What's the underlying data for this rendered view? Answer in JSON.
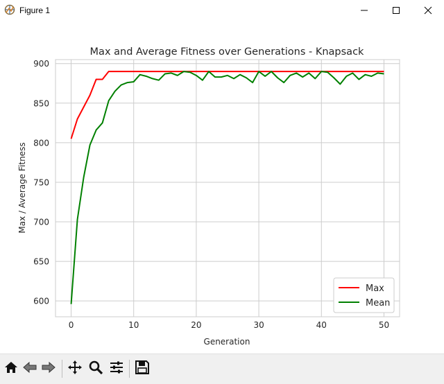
{
  "window": {
    "title": "Figure 1",
    "icons": [
      "figure-app-icon",
      "minimize-icon",
      "maximize-icon",
      "close-icon"
    ]
  },
  "toolbar": {
    "tools": [
      "home-icon",
      "back-icon",
      "forward-icon",
      "pan-icon",
      "zoom-icon",
      "configure-subplots-icon",
      "save-icon"
    ]
  },
  "chart_data": {
    "type": "line",
    "title": "Max and Average Fitness over Generations - Knapsack",
    "xlabel": "Generation",
    "ylabel": "Max / Average Fitness",
    "xlim": [
      -2.5,
      52.5
    ],
    "ylim": [
      580,
      905
    ],
    "xticks": [
      0,
      10,
      20,
      30,
      40,
      50
    ],
    "yticks": [
      600,
      650,
      700,
      750,
      800,
      850,
      900
    ],
    "grid": true,
    "legend_position": "lower-right",
    "x": [
      0,
      1,
      2,
      3,
      4,
      5,
      6,
      7,
      8,
      9,
      10,
      11,
      12,
      13,
      14,
      15,
      16,
      17,
      18,
      19,
      20,
      21,
      22,
      23,
      24,
      25,
      26,
      27,
      28,
      29,
      30,
      31,
      32,
      33,
      34,
      35,
      36,
      37,
      38,
      39,
      40,
      41,
      42,
      43,
      44,
      45,
      46,
      47,
      48,
      49,
      50
    ],
    "series": [
      {
        "name": "Max",
        "color": "#ff0000",
        "values": [
          805,
          830,
          845,
          860,
          880,
          880,
          890,
          890,
          890,
          890,
          890,
          890,
          890,
          890,
          890,
          890,
          890,
          890,
          890,
          890,
          890,
          890,
          890,
          890,
          890,
          890,
          890,
          890,
          890,
          890,
          890,
          890,
          890,
          890,
          890,
          890,
          890,
          890,
          890,
          890,
          890,
          890,
          890,
          890,
          890,
          890,
          890,
          890,
          890,
          890,
          890
        ]
      },
      {
        "name": "Mean",
        "color": "#008000",
        "values": [
          596,
          703,
          756,
          797,
          816,
          825,
          853,
          865,
          873,
          876,
          877,
          886,
          884,
          881,
          879,
          887,
          888,
          885,
          890,
          889,
          885,
          879,
          890,
          883,
          883,
          885,
          881,
          886,
          882,
          876,
          890,
          884,
          890,
          882,
          876,
          885,
          888,
          883,
          888,
          881,
          890,
          889,
          882,
          874,
          884,
          888,
          880,
          886,
          884,
          888,
          887
        ]
      }
    ]
  }
}
